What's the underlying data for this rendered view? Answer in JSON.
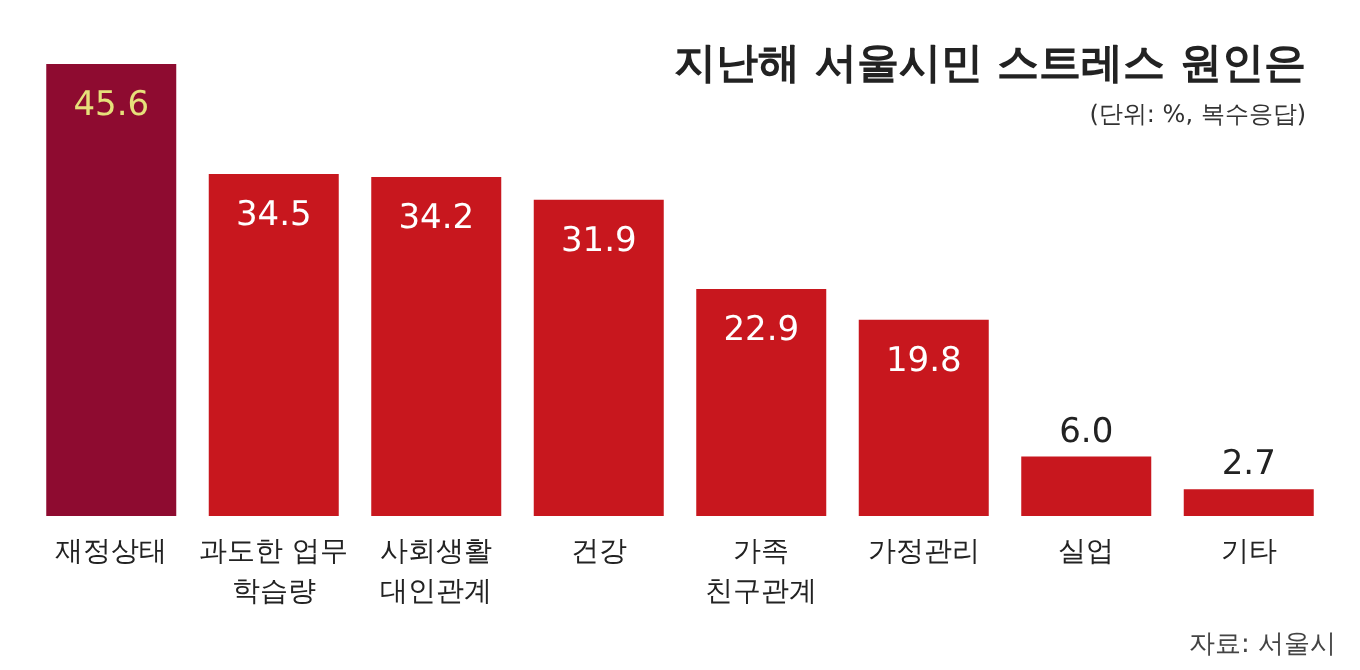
{
  "chart_data": {
    "type": "bar",
    "title": "지난해 서울시민 스트레스 원인은",
    "subtitle": "(단위: %, 복수응답)",
    "categories": [
      "재정상태",
      "과도한 업무\n학습량",
      "사회생활\n대인관계",
      "건강",
      "가족\n친구관계",
      "가정관리",
      "실업",
      "기타"
    ],
    "values": [
      45.6,
      34.5,
      34.2,
      31.9,
      22.9,
      19.8,
      6.0,
      2.7
    ],
    "value_labels": [
      "45.6",
      "34.5",
      "34.2",
      "31.9",
      "22.9",
      "19.8",
      "6.0",
      "2.7"
    ],
    "colors": [
      "#8e0b30",
      "#c8171e",
      "#c8171e",
      "#c8171e",
      "#c8171e",
      "#c8171e",
      "#c8171e",
      "#c8171e"
    ],
    "annotations": [
      "자료: 서울시"
    ]
  }
}
